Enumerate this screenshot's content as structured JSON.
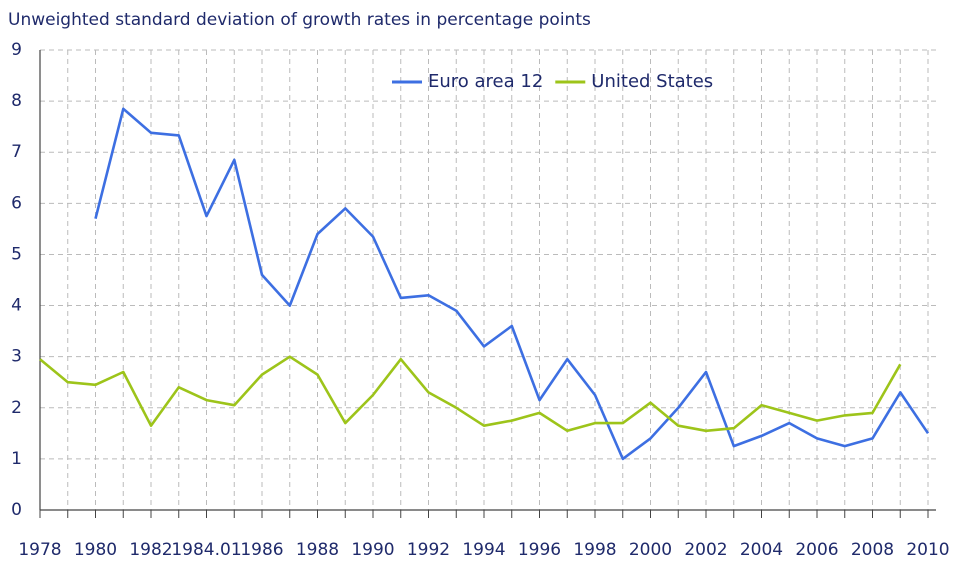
{
  "chart_data": {
    "type": "line",
    "title": "Unweighted standard deviation of growth rates in percentage points",
    "categories": [
      "1978",
      null,
      "1980",
      null,
      "1982",
      null,
      "1984.01",
      null,
      "1986",
      null,
      "1988",
      null,
      "1990",
      null,
      "1992",
      null,
      "1994",
      null,
      "1996",
      null,
      "1998",
      null,
      "2000",
      null,
      "2002",
      null,
      "2004",
      null,
      "2006",
      null,
      "2008",
      null,
      "2010"
    ],
    "series": [
      {
        "name": "Euro area 12",
        "color": "#3d6fe2",
        "values": [
          null,
          null,
          5.7,
          7.85,
          7.38,
          7.33,
          5.75,
          6.85,
          4.6,
          4.0,
          5.4,
          5.9,
          5.35,
          4.15,
          4.2,
          3.9,
          3.2,
          3.6,
          2.15,
          2.95,
          2.25,
          1.0,
          1.4,
          2.0,
          2.7,
          1.25,
          1.45,
          1.7,
          1.4,
          1.25,
          1.4,
          2.3,
          1.5
        ]
      },
      {
        "name": "United States",
        "color": "#9dc41a",
        "values": [
          2.95,
          2.5,
          2.45,
          2.7,
          1.65,
          2.4,
          2.15,
          2.05,
          2.65,
          3.0,
          2.65,
          1.7,
          2.25,
          2.95,
          2.3,
          2.0,
          1.65,
          1.75,
          1.9,
          1.55,
          1.7,
          1.7,
          2.1,
          1.65,
          1.55,
          1.6,
          2.05,
          1.9,
          1.75,
          1.85,
          1.9,
          2.85,
          null
        ]
      }
    ],
    "ylim": [
      0,
      9
    ],
    "yticks": [
      0,
      1,
      2,
      3,
      4,
      5,
      6,
      7,
      8,
      9
    ],
    "grid": true,
    "legend": "top"
  }
}
